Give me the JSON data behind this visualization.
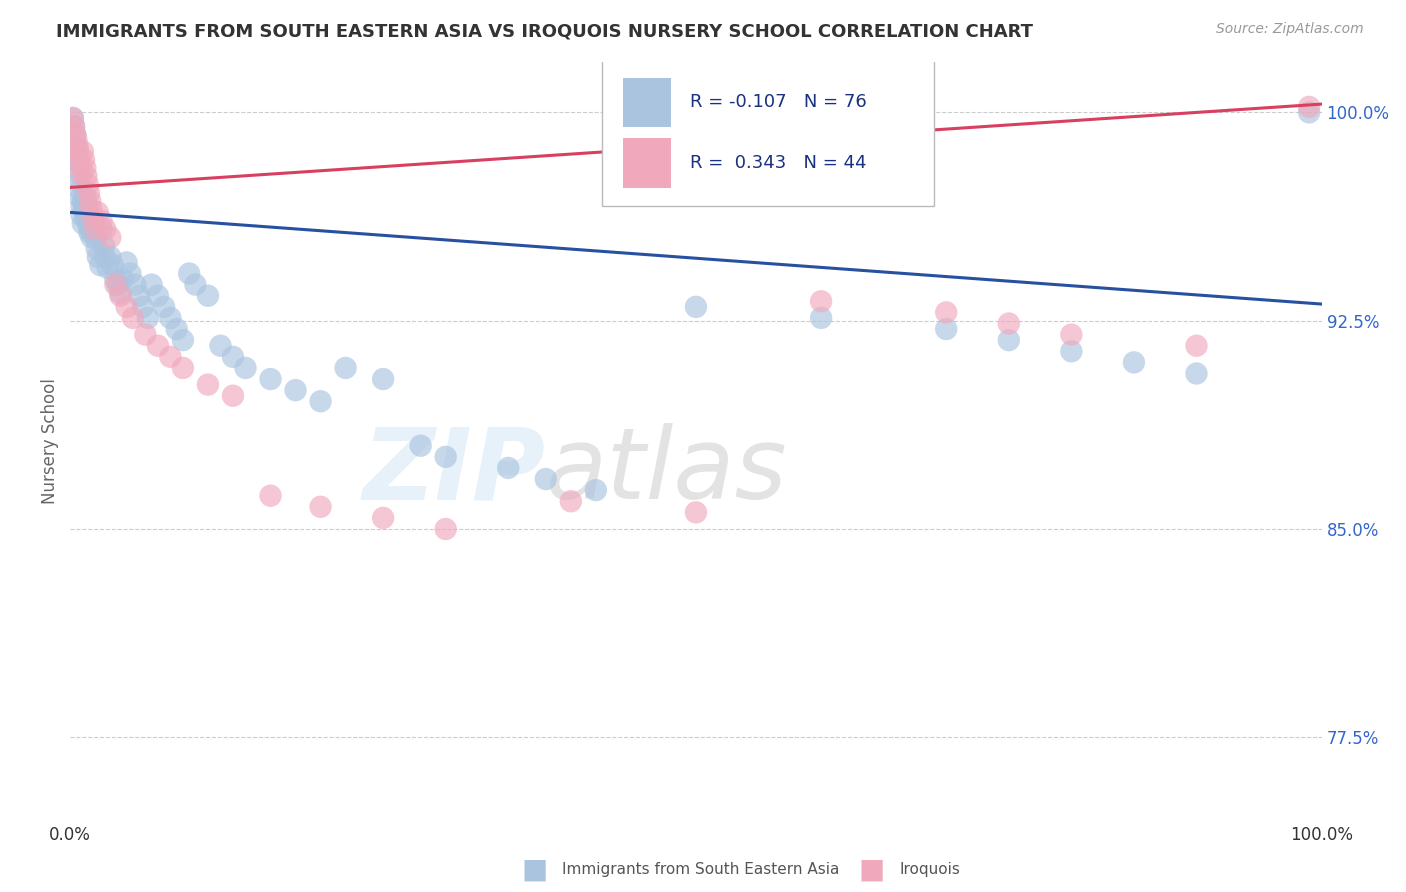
{
  "title": "IMMIGRANTS FROM SOUTH EASTERN ASIA VS IROQUOIS NURSERY SCHOOL CORRELATION CHART",
  "source_text": "Source: ZipAtlas.com",
  "ylabel": "Nursery School",
  "xlim": [
    0.0,
    1.0
  ],
  "ylim": [
    0.745,
    1.018
  ],
  "yticks": [
    0.775,
    0.85,
    0.925,
    1.0
  ],
  "ytick_labels": [
    "77.5%",
    "85.0%",
    "92.5%",
    "100.0%"
  ],
  "xticks": [
    0.0,
    1.0
  ],
  "xtick_labels": [
    "0.0%",
    "100.0%"
  ],
  "blue_R": -0.107,
  "blue_N": 76,
  "pink_R": 0.343,
  "pink_N": 44,
  "blue_color": "#aac4e0",
  "pink_color": "#f0a8bc",
  "blue_line_color": "#2850a0",
  "pink_line_color": "#d84060",
  "legend_label_blue": "Immigrants from South Eastern Asia",
  "legend_label_pink": "Iroquois",
  "blue_line_y0": 0.964,
  "blue_line_y1": 0.931,
  "pink_line_y0": 0.973,
  "pink_line_y1": 1.003,
  "blue_x": [
    0.002,
    0.003,
    0.004,
    0.005,
    0.005,
    0.006,
    0.007,
    0.007,
    0.008,
    0.008,
    0.009,
    0.009,
    0.01,
    0.01,
    0.011,
    0.012,
    0.012,
    0.013,
    0.013,
    0.014,
    0.015,
    0.015,
    0.016,
    0.017,
    0.018,
    0.019,
    0.02,
    0.021,
    0.022,
    0.024,
    0.025,
    0.027,
    0.028,
    0.03,
    0.032,
    0.034,
    0.036,
    0.038,
    0.04,
    0.042,
    0.045,
    0.048,
    0.052,
    0.055,
    0.058,
    0.062,
    0.065,
    0.07,
    0.075,
    0.08,
    0.085,
    0.09,
    0.095,
    0.1,
    0.11,
    0.12,
    0.13,
    0.14,
    0.16,
    0.18,
    0.2,
    0.22,
    0.25,
    0.28,
    0.3,
    0.35,
    0.38,
    0.42,
    0.5,
    0.6,
    0.7,
    0.75,
    0.8,
    0.85,
    0.9,
    0.99
  ],
  "blue_y": [
    0.998,
    0.995,
    0.992,
    0.988,
    0.985,
    0.982,
    0.978,
    0.975,
    0.972,
    0.969,
    0.966,
    0.963,
    0.96,
    0.968,
    0.965,
    0.962,
    0.97,
    0.967,
    0.964,
    0.96,
    0.957,
    0.962,
    0.958,
    0.955,
    0.962,
    0.958,
    0.955,
    0.951,
    0.948,
    0.945,
    0.958,
    0.952,
    0.948,
    0.944,
    0.948,
    0.945,
    0.94,
    0.938,
    0.935,
    0.94,
    0.946,
    0.942,
    0.938,
    0.934,
    0.93,
    0.926,
    0.938,
    0.934,
    0.93,
    0.926,
    0.922,
    0.918,
    0.942,
    0.938,
    0.934,
    0.916,
    0.912,
    0.908,
    0.904,
    0.9,
    0.896,
    0.908,
    0.904,
    0.88,
    0.876,
    0.872,
    0.868,
    0.864,
    0.93,
    0.926,
    0.922,
    0.918,
    0.914,
    0.91,
    0.906,
    1.0
  ],
  "pink_x": [
    0.002,
    0.003,
    0.004,
    0.005,
    0.006,
    0.007,
    0.008,
    0.009,
    0.01,
    0.011,
    0.012,
    0.013,
    0.014,
    0.015,
    0.016,
    0.017,
    0.018,
    0.02,
    0.022,
    0.025,
    0.028,
    0.032,
    0.036,
    0.04,
    0.045,
    0.05,
    0.06,
    0.07,
    0.08,
    0.09,
    0.11,
    0.13,
    0.16,
    0.2,
    0.25,
    0.3,
    0.4,
    0.5,
    0.6,
    0.7,
    0.75,
    0.8,
    0.9,
    0.99
  ],
  "pink_y": [
    0.998,
    0.995,
    0.992,
    0.99,
    0.987,
    0.984,
    0.981,
    0.978,
    0.986,
    0.983,
    0.98,
    0.977,
    0.974,
    0.971,
    0.968,
    0.965,
    0.962,
    0.958,
    0.964,
    0.961,
    0.958,
    0.955,
    0.938,
    0.934,
    0.93,
    0.926,
    0.92,
    0.916,
    0.912,
    0.908,
    0.902,
    0.898,
    0.862,
    0.858,
    0.854,
    0.85,
    0.86,
    0.856,
    0.932,
    0.928,
    0.924,
    0.92,
    0.916,
    1.002
  ]
}
